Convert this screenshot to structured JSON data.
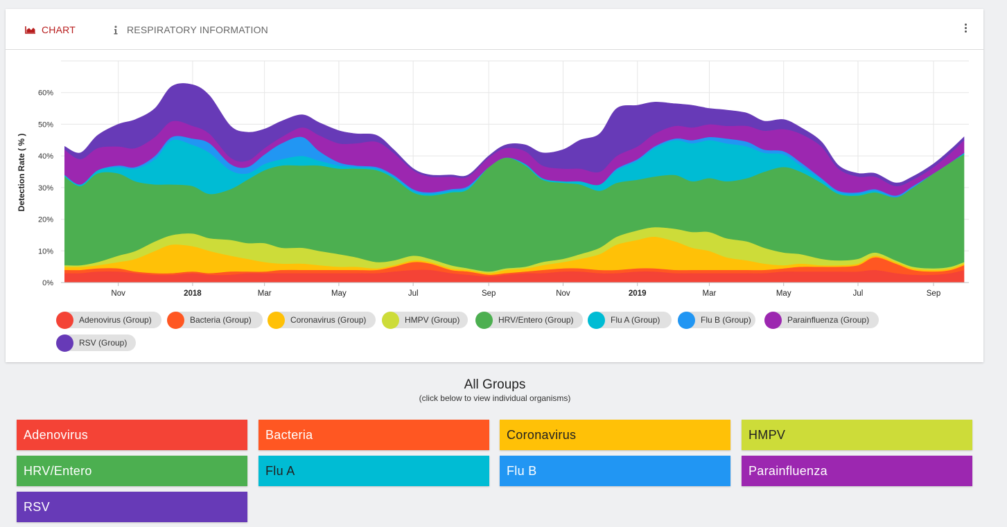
{
  "tabs": [
    {
      "label": "CHART",
      "icon": "area-chart-icon",
      "active": true
    },
    {
      "label": "RESPIRATORY INFORMATION",
      "icon": "info-icon",
      "active": false
    }
  ],
  "menu_icon": "more-vertical-icon",
  "groups": {
    "title": "All Groups",
    "subtitle": "(click below to view individual organisms)",
    "buttons": [
      {
        "label": "Adenovirus",
        "color": "#f44336",
        "text_color": "#ffffff"
      },
      {
        "label": "Bacteria",
        "color": "#ff5722",
        "text_color": "#ffffff"
      },
      {
        "label": "Coronavirus",
        "color": "#ffc107",
        "text_color": "#212121"
      },
      {
        "label": "HMPV",
        "color": "#cddc39",
        "text_color": "#212121"
      },
      {
        "label": "HRV/Entero",
        "color": "#4caf50",
        "text_color": "#ffffff"
      },
      {
        "label": "Flu A",
        "color": "#00bcd4",
        "text_color": "#212121"
      },
      {
        "label": "Flu B",
        "color": "#2196f3",
        "text_color": "#ffffff"
      },
      {
        "label": "Parainfluenza",
        "color": "#9c27b0",
        "text_color": "#ffffff"
      },
      {
        "label": "RSV",
        "color": "#673ab7",
        "text_color": "#ffffff"
      }
    ]
  },
  "chart_data": {
    "type": "area",
    "stacked": true,
    "ylabel": "Detection Rate ( % )",
    "xlabel": "",
    "ylim": [
      0,
      70
    ],
    "yticks": [
      0,
      10,
      20,
      30,
      40,
      50,
      60
    ],
    "ytick_labels": [
      "0%",
      "10%",
      "20%",
      "30%",
      "40%",
      "50%",
      "60%"
    ],
    "xlim": [
      "2017-09-15",
      "2019-09-30"
    ],
    "xticks": [
      {
        "date": "2017-11-01",
        "label": "Nov",
        "bold": false
      },
      {
        "date": "2018-01-01",
        "label": "2018",
        "bold": true
      },
      {
        "date": "2018-03-01",
        "label": "Mar",
        "bold": false
      },
      {
        "date": "2018-05-01",
        "label": "May",
        "bold": false
      },
      {
        "date": "2018-07-01",
        "label": "Jul",
        "bold": false
      },
      {
        "date": "2018-09-01",
        "label": "Sep",
        "bold": false
      },
      {
        "date": "2018-11-01",
        "label": "Nov",
        "bold": false
      },
      {
        "date": "2019-01-01",
        "label": "2019",
        "bold": true
      },
      {
        "date": "2019-03-01",
        "label": "Mar",
        "bold": false
      },
      {
        "date": "2019-05-01",
        "label": "May",
        "bold": false
      },
      {
        "date": "2019-07-01",
        "label": "Jul",
        "bold": false
      },
      {
        "date": "2019-09-01",
        "label": "Sep",
        "bold": false
      }
    ],
    "grid": true,
    "legend_position": "bottom",
    "x": [
      "2017-09-18",
      "2017-10-01",
      "2017-10-15",
      "2017-11-01",
      "2017-11-15",
      "2017-12-01",
      "2017-12-15",
      "2018-01-01",
      "2018-01-15",
      "2018-02-01",
      "2018-02-15",
      "2018-03-01",
      "2018-03-15",
      "2018-04-01",
      "2018-04-15",
      "2018-05-01",
      "2018-05-15",
      "2018-06-01",
      "2018-06-15",
      "2018-07-01",
      "2018-07-15",
      "2018-08-01",
      "2018-08-15",
      "2018-09-01",
      "2018-09-15",
      "2018-10-01",
      "2018-10-15",
      "2018-11-01",
      "2018-11-15",
      "2018-12-01",
      "2018-12-15",
      "2019-01-01",
      "2019-01-15",
      "2019-02-01",
      "2019-02-15",
      "2019-03-01",
      "2019-03-15",
      "2019-04-01",
      "2019-04-15",
      "2019-05-01",
      "2019-05-15",
      "2019-06-01",
      "2019-06-15",
      "2019-07-01",
      "2019-07-15",
      "2019-08-01",
      "2019-08-15",
      "2019-09-01",
      "2019-09-15",
      "2019-09-26"
    ],
    "series": [
      {
        "name": "Adenovirus (Group)",
        "color": "#f44336",
        "values": [
          3,
          3,
          3.5,
          3.5,
          3,
          2.5,
          2.5,
          3,
          2.5,
          2.5,
          3,
          3,
          3,
          3,
          3,
          3,
          3,
          3,
          3.5,
          4,
          4,
          3,
          2.5,
          2,
          2.5,
          3,
          3,
          3.5,
          3.5,
          3,
          3,
          3.5,
          3.5,
          3,
          3,
          3,
          3,
          3,
          3,
          3.5,
          3.5,
          3.5,
          3.5,
          3.5,
          4,
          3,
          2.5,
          2.5,
          3,
          4
        ]
      },
      {
        "name": "Bacteria (Group)",
        "color": "#ff5722",
        "values": [
          1,
          1,
          1,
          1,
          0.5,
          0.5,
          0.5,
          0.5,
          0.5,
          1,
          0.5,
          0.5,
          1,
          1,
          1,
          1,
          1,
          1,
          1.5,
          2.5,
          2,
          1,
          1,
          0.5,
          0.5,
          0.5,
          1,
          1,
          1,
          1,
          1,
          1,
          1,
          1,
          1,
          1,
          1,
          1,
          1,
          1,
          1.5,
          1.5,
          1.5,
          2,
          4,
          3,
          1.5,
          1,
          1,
          1.5
        ]
      },
      {
        "name": "Coronavirus (Group)",
        "color": "#ffc107",
        "values": [
          1,
          1,
          1,
          2,
          4,
          7,
          9,
          8,
          7,
          5,
          4,
          3,
          2,
          2,
          1.5,
          1,
          1,
          0.5,
          0.5,
          0.5,
          0.5,
          0.5,
          0.5,
          0.5,
          1,
          1,
          1.5,
          2,
          3,
          5,
          8,
          9,
          10,
          9,
          7,
          6,
          4,
          3,
          2,
          1,
          1,
          0.5,
          0.5,
          0.5,
          0.5,
          0.5,
          0.5,
          0.5,
          0.5,
          0.5
        ]
      },
      {
        "name": "HMPV (Group)",
        "color": "#cddc39",
        "values": [
          0.5,
          0.5,
          1,
          2,
          2.5,
          3,
          3,
          4,
          4,
          5,
          5,
          6,
          5,
          5,
          4.5,
          4,
          3,
          2,
          1.5,
          1.5,
          1,
          1,
          0.5,
          0.5,
          0.5,
          0.5,
          1,
          1,
          1.5,
          2,
          2.5,
          3,
          3,
          4,
          5,
          6,
          6,
          6,
          5,
          4,
          3,
          2,
          1.5,
          1.5,
          1,
          0.5,
          0.5,
          0.5,
          0.5,
          0.5
        ]
      },
      {
        "name": "HRV/Entero (Group)",
        "color": "#4caf50",
        "values": [
          28,
          25,
          28,
          26,
          22,
          18,
          16,
          15,
          14,
          16,
          20,
          23,
          26,
          26,
          27,
          27,
          28,
          29,
          26,
          20,
          20,
          23,
          25,
          33,
          35,
          32,
          26,
          24,
          22,
          18,
          17,
          16,
          16,
          17,
          16,
          17,
          18,
          20,
          24,
          27,
          26,
          24,
          21,
          20,
          19,
          20,
          25,
          30,
          33,
          34
        ]
      },
      {
        "name": "Flu A (Group)",
        "color": "#00bcd4",
        "values": [
          0.5,
          0.5,
          1,
          2,
          4,
          8,
          14,
          13,
          13,
          6,
          2,
          2,
          2,
          3,
          1.5,
          1,
          0.5,
          0.5,
          0.5,
          0.5,
          0.5,
          0.5,
          0.5,
          0,
          0,
          0.5,
          0.5,
          0.5,
          1,
          2,
          4,
          6,
          9,
          11,
          12,
          12,
          12,
          10,
          6,
          4,
          2,
          1,
          0.5,
          0.5,
          0.5,
          0,
          0,
          0,
          0,
          0.5
        ]
      },
      {
        "name": "Flu B (Group)",
        "color": "#2196f3",
        "values": [
          0,
          0,
          0,
          0.5,
          0.5,
          1,
          1,
          2,
          3,
          2,
          2,
          3,
          5,
          6,
          3,
          1,
          0.5,
          0.5,
          0.5,
          0.5,
          0.5,
          0.5,
          0.5,
          0,
          0,
          0,
          0,
          0,
          0,
          0,
          0.5,
          0.5,
          0.5,
          0.5,
          1,
          1,
          1.5,
          1.5,
          1,
          1,
          1,
          0.5,
          0.5,
          0.5,
          0.5,
          0.5,
          0.5,
          0,
          0,
          0
        ]
      },
      {
        "name": "Parainfluenza (Group)",
        "color": "#9c27b0",
        "values": [
          8,
          8,
          7,
          6,
          6,
          6,
          5,
          4,
          3,
          2,
          2,
          2,
          2,
          3,
          5,
          6,
          7,
          8,
          7,
          6,
          5,
          4,
          3,
          3,
          3,
          4,
          4,
          4,
          4,
          4,
          4,
          4,
          4,
          4,
          4,
          4,
          4,
          5,
          6,
          7,
          9,
          10,
          7,
          5,
          4,
          3,
          2,
          2,
          3,
          4
        ]
      },
      {
        "name": "RSV (Group)",
        "color": "#673ab7",
        "values": [
          1,
          2,
          4,
          7,
          9,
          9,
          11,
          13,
          12,
          10,
          9,
          6,
          5,
          4,
          4,
          4,
          3,
          2,
          1,
          0.5,
          0.5,
          0.5,
          0.5,
          0.5,
          1,
          2,
          4,
          6,
          9,
          12,
          15,
          13,
          10,
          7,
          7,
          5,
          5,
          4,
          3,
          3,
          2,
          1.5,
          1,
          1,
          1,
          1,
          1,
          1,
          1,
          1
        ]
      }
    ]
  }
}
